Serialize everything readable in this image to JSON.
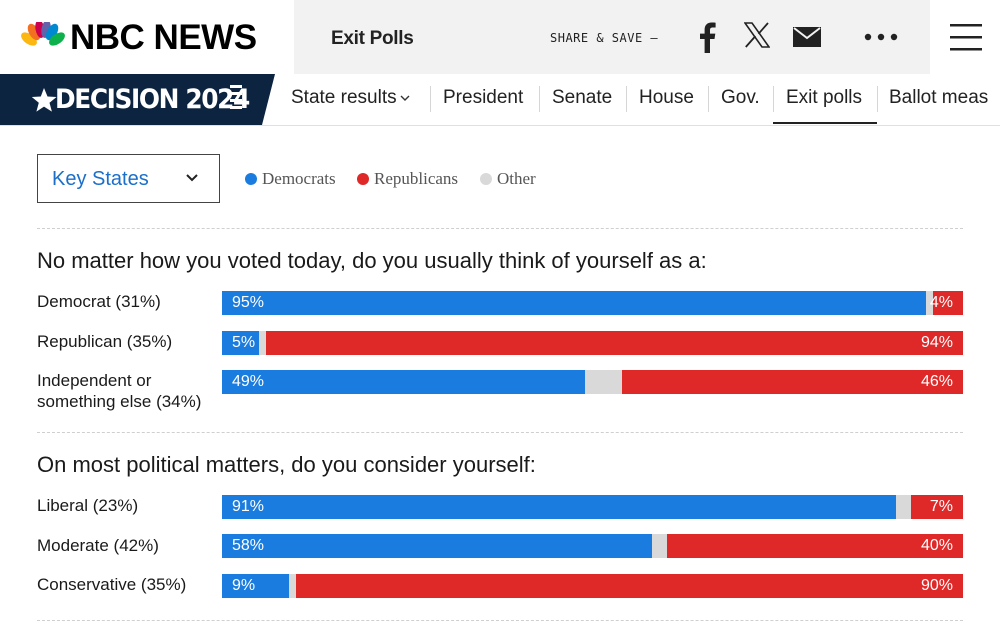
{
  "header": {
    "brand": "NBC NEWS",
    "section_title": "Exit Polls",
    "share_label": "SHARE & SAVE —",
    "icons": [
      "facebook-icon",
      "x-icon",
      "mail-icon",
      "more-icon",
      "menu-icon"
    ]
  },
  "nav": {
    "badge": "DECISION 2024",
    "items": [
      {
        "label": "State results",
        "has_chevron": true
      },
      {
        "label": "President"
      },
      {
        "label": "Senate"
      },
      {
        "label": "House"
      },
      {
        "label": "Gov."
      },
      {
        "label": "Exit polls",
        "active": true
      },
      {
        "label": "Ballot meas"
      }
    ]
  },
  "filter": {
    "dropdown_value": "Key States"
  },
  "legend": {
    "democrats": {
      "label": "Democrats",
      "color": "#1a7cde"
    },
    "republicans": {
      "label": "Republicans",
      "color": "#df2828"
    },
    "other": {
      "label": "Other",
      "color": "#d9d9d9"
    }
  },
  "questions": [
    {
      "text": "No matter how you voted today, do you usually think of yourself as a:",
      "rows": [
        {
          "label": "Democrat (31%)",
          "dem": 95,
          "rep": 4,
          "dem_label": "95%",
          "rep_label": "4%"
        },
        {
          "label": "Republican (35%)",
          "dem": 5,
          "rep": 94,
          "dem_label": "5%",
          "rep_label": "94%"
        },
        {
          "label_line1": "Independent or",
          "label_line2": "something else (34%)",
          "dem": 49,
          "rep": 46,
          "dem_label": "49%",
          "rep_label": "46%"
        }
      ]
    },
    {
      "text": "On most political matters, do you consider yourself:",
      "rows": [
        {
          "label": "Liberal (23%)",
          "dem": 91,
          "rep": 7,
          "dem_label": "91%",
          "rep_label": "7%"
        },
        {
          "label": "Moderate (42%)",
          "dem": 58,
          "rep": 40,
          "dem_label": "58%",
          "rep_label": "40%"
        },
        {
          "label": "Conservative (35%)",
          "dem": 9,
          "rep": 90,
          "dem_label": "9%",
          "rep_label": "90%"
        }
      ]
    }
  ]
}
